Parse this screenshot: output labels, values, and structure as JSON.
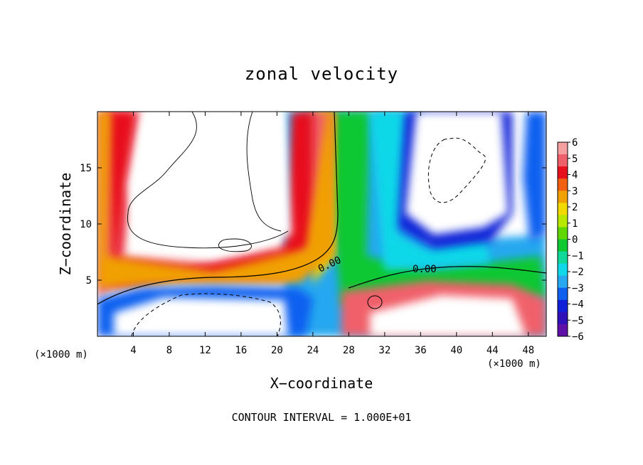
{
  "chart_data": {
    "type": "heatmap",
    "title": "zonal velocity",
    "xlabel": "X−coordinate",
    "ylabel": "Z−coordinate",
    "x_unit_left": "(×1000 m)",
    "x_unit_right": "(×1000 m)",
    "xlim": [
      0,
      50
    ],
    "ylim": [
      0,
      20
    ],
    "x_ticks": [
      "4",
      "8",
      "12",
      "16",
      "20",
      "24",
      "28",
      "32",
      "36",
      "40",
      "44",
      "48"
    ],
    "y_ticks": [
      "5",
      "10",
      "15"
    ],
    "colorbar": {
      "ticks": [
        "6",
        "5",
        "4",
        "3",
        "2",
        "1",
        "0",
        "−1",
        "−2",
        "−3",
        "−4",
        "−5",
        "−6"
      ],
      "range": [
        -6,
        6
      ],
      "colors": [
        "#f4a0a0",
        "#f0606a",
        "#e8101c",
        "#f06010",
        "#f0a000",
        "#f0d800",
        "#b8e800",
        "#60d800",
        "#10c830",
        "#10d898",
        "#10d8e8",
        "#28a8f0",
        "#1060f0",
        "#1020d8",
        "#3010b8",
        "#6010a8"
      ]
    },
    "contour_labels": [
      "0.00",
      "0.00"
    ],
    "contour_interval": "CONTOUR INTERVAL = 1.000E+01",
    "grid": false
  }
}
